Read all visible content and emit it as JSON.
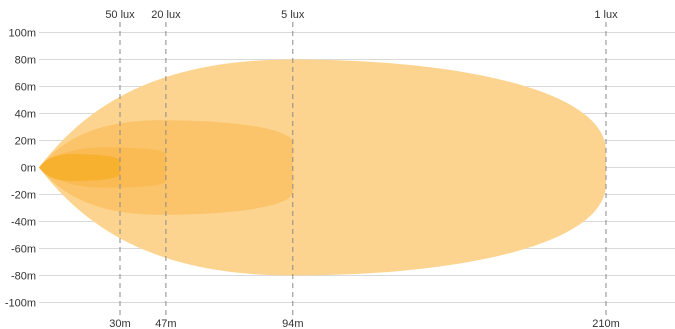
{
  "chart_data": {
    "type": "area",
    "title": "",
    "xlabel": "",
    "ylabel": "",
    "x_unit": "m",
    "y_unit": "m",
    "xlim": [
      0,
      235
    ],
    "ylim": [
      -100,
      100
    ],
    "y_ticks": [
      100,
      80,
      60,
      40,
      20,
      0,
      -20,
      -40,
      -60,
      -80,
      -100
    ],
    "y_tick_labels": [
      "100m",
      "80m",
      "60m",
      "40m",
      "20m",
      "0m",
      "-20m",
      "-40m",
      "-60m",
      "-80m",
      "-100m"
    ],
    "colors": {
      "beam_1_lux": "#fdd48f",
      "beam_5_lux": "#fbc46a",
      "beam_20_lux": "#fabb55",
      "beam_50_lux": "#f8b12f",
      "grid": "#d9d9d9",
      "markers": "#8a8a8a"
    },
    "series": [
      {
        "lux": "1 lux",
        "distance_label": "210m",
        "reach": 210,
        "max_half_width": 80,
        "peak_x": 94,
        "end_half_width": 12
      },
      {
        "lux": "5 lux",
        "distance_label": "94m",
        "reach": 94,
        "max_half_width": 35,
        "peak_x": 45,
        "end_half_width": 18
      },
      {
        "lux": "20 lux",
        "distance_label": "47m",
        "reach": 47,
        "max_half_width": 15,
        "peak_x": 25,
        "end_half_width": 10
      },
      {
        "lux": "50 lux",
        "distance_label": "30m",
        "reach": 30,
        "max_half_width": 10,
        "peak_x": 12,
        "end_half_width": 5
      }
    ]
  }
}
